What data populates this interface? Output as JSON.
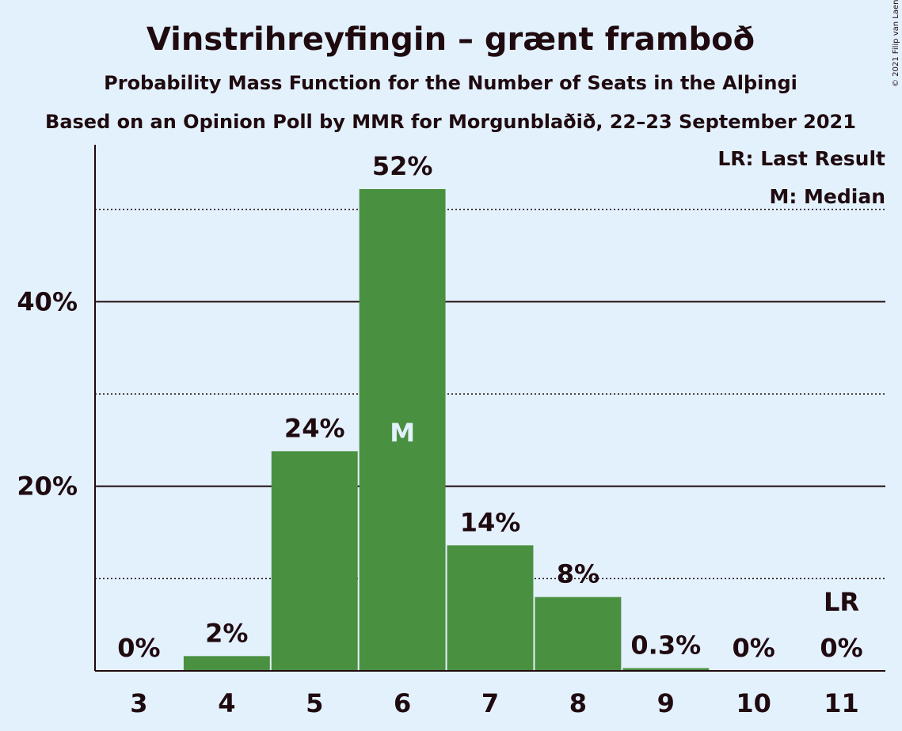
{
  "copyright": "© 2021 Filip van Laenen",
  "chart_data": {
    "type": "bar",
    "title": "Vinstrihreyfingin – grænt framboð",
    "subtitle": "Probability Mass Function for the Number of Seats in the Alþingi",
    "subtitle2": "Based on an Opinion Poll by MMR for Morgunblaðið, 22–23 September 2021",
    "categories": [
      "3",
      "4",
      "5",
      "6",
      "7",
      "8",
      "9",
      "10",
      "11"
    ],
    "values": [
      0,
      1.6,
      23.8,
      52.2,
      13.6,
      8.0,
      0.3,
      0,
      0
    ],
    "data_labels": [
      "0%",
      "2%",
      "24%",
      "52%",
      "14%",
      "8%",
      "0.3%",
      "0%",
      "0%"
    ],
    "ylim": [
      0,
      57
    ],
    "yticks": [
      {
        "value": 20,
        "label": "20%"
      },
      {
        "value": 40,
        "label": "40%"
      }
    ],
    "dotted_gridlines": [
      10,
      30,
      50
    ],
    "median_category": "6",
    "median_marker": "M",
    "last_result_category": "11",
    "last_result_marker": "LR",
    "legend": {
      "placement": "top-right",
      "entries": [
        "LR: Last Result",
        "M: Median"
      ]
    },
    "bar_color": "#4a9041",
    "xlabel": "",
    "ylabel": ""
  }
}
